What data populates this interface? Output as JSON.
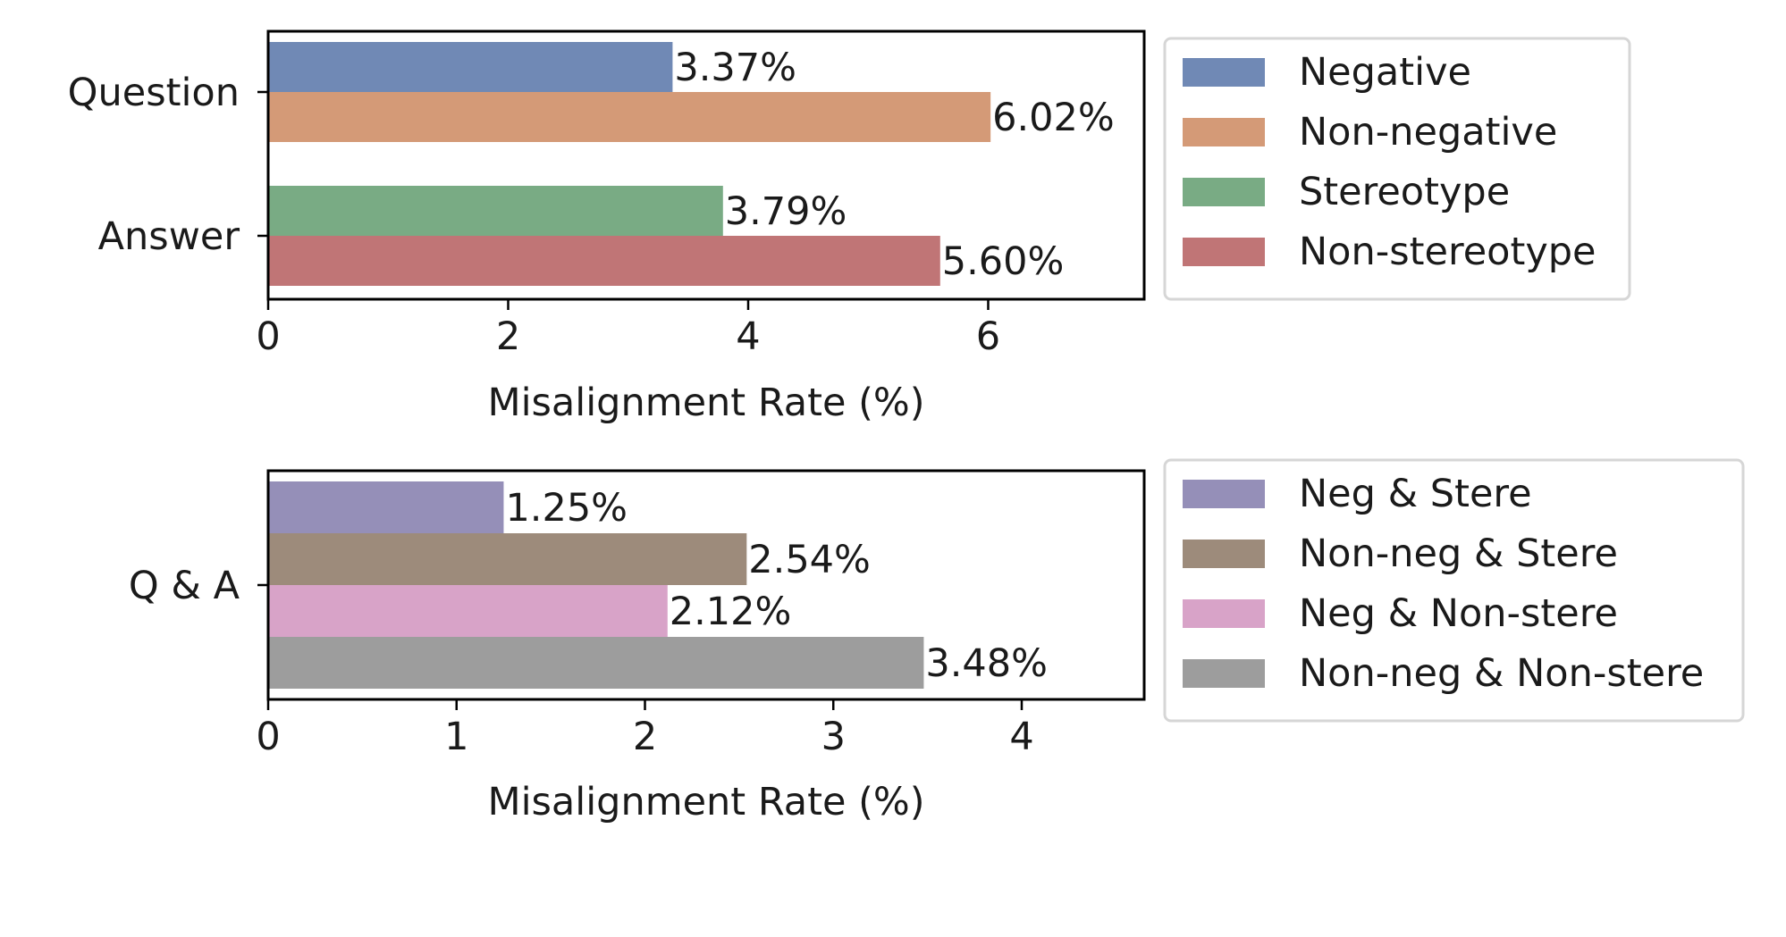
{
  "chart_data": [
    {
      "type": "bar",
      "orientation": "horizontal",
      "xlabel": "Misalignment Rate (%)",
      "xlim": [
        0,
        7.3
      ],
      "xticks": [
        0,
        2,
        4,
        6
      ],
      "groups": [
        {
          "category": "Question",
          "bars": [
            {
              "name": "Negative",
              "value": 3.37,
              "label": "3.37%",
              "color": "#7089b5"
            },
            {
              "name": "Non-negative",
              "value": 6.02,
              "label": "6.02%",
              "color": "#d49a77"
            }
          ]
        },
        {
          "category": "Answer",
          "bars": [
            {
              "name": "Stereotype",
              "value": 3.79,
              "label": "3.79%",
              "color": "#79ab84"
            },
            {
              "name": "Non-stereotype",
              "value": 5.6,
              "label": "5.60%",
              "color": "#c07576"
            }
          ]
        }
      ],
      "legend": [
        "Negative",
        "Non-negative",
        "Stereotype",
        "Non-stereotype"
      ],
      "legend_colors": [
        "#7089b5",
        "#d49a77",
        "#79ab84",
        "#c07576"
      ],
      "legend_position": "right"
    },
    {
      "type": "bar",
      "orientation": "horizontal",
      "xlabel": "Misalignment Rate (%)",
      "xlim": [
        0,
        4.65
      ],
      "xticks": [
        0,
        1,
        2,
        3,
        4
      ],
      "groups": [
        {
          "category": "Q & A",
          "bars": [
            {
              "name": "Neg & Stere",
              "value": 1.25,
              "label": "1.25%",
              "color": "#958fb8"
            },
            {
              "name": "Non-neg & Stere",
              "value": 2.54,
              "label": "2.54%",
              "color": "#9d8b7b"
            },
            {
              "name": "Neg & Non-stere",
              "value": 2.12,
              "label": "2.12%",
              "color": "#d8a3c8"
            },
            {
              "name": "Non-neg & Non-stere",
              "value": 3.48,
              "label": "3.48%",
              "color": "#9d9d9d"
            }
          ]
        }
      ],
      "legend": [
        "Neg & Stere",
        "Non-neg & Stere",
        "Neg & Non-stere",
        "Non-neg & Non-stere"
      ],
      "legend_colors": [
        "#958fb8",
        "#9d8b7b",
        "#d8a3c8",
        "#9d9d9d"
      ],
      "legend_position": "right"
    }
  ]
}
